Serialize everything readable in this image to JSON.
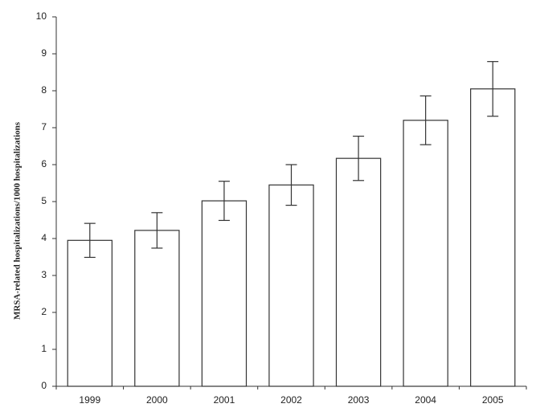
{
  "chart_data": {
    "type": "bar",
    "y_label": "MRSA-related hospitalizations/1000 hospitalizations",
    "categories": [
      "1999",
      "2000",
      "2001",
      "2002",
      "2003",
      "2004",
      "2005"
    ],
    "values": [
      3.95,
      4.22,
      5.02,
      5.45,
      6.17,
      7.2,
      8.05
    ],
    "errors": [
      0.46,
      0.48,
      0.53,
      0.55,
      0.6,
      0.66,
      0.74
    ],
    "color": "#ffffff",
    "ylim": [
      0,
      10
    ],
    "yticks": [
      0,
      1,
      2,
      3,
      4,
      5,
      6,
      7,
      8,
      9,
      10
    ],
    "grid": false
  }
}
